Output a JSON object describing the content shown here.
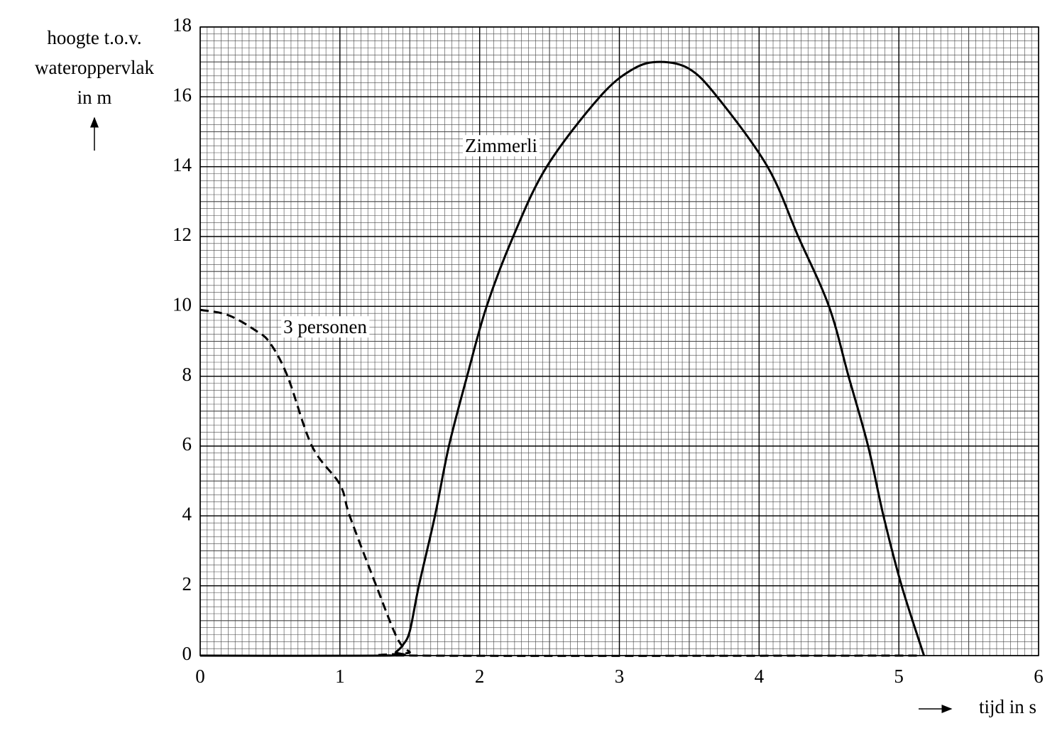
{
  "chart_data": {
    "type": "line",
    "ylabel": [
      "hoogte t.o.v.",
      "wateroppervlak",
      "in m"
    ],
    "xlabel": "tijd in s",
    "x_series": true,
    "series": [
      {
        "name": "Zimmerli",
        "color": "#000000",
        "dashed": false,
        "x": [
          0,
          1.35,
          1.4,
          1.45,
          1.5,
          1.565,
          1.68,
          1.78,
          1.91,
          2.05,
          2.24,
          2.48,
          2.86,
          3.1,
          3.29,
          3.5,
          3.7,
          4.06,
          4.28,
          4.5,
          4.64,
          4.78,
          4.89,
          5.02,
          5.18
        ],
        "values": [
          0,
          0,
          0.1,
          0.3,
          0.7,
          2,
          4,
          6,
          8,
          10,
          12,
          14,
          16,
          16.8,
          17,
          16.8,
          16,
          14,
          12,
          10,
          8,
          6,
          4,
          2,
          0
        ]
      },
      {
        "name": "3 personen",
        "color": "#000000",
        "dashed": true,
        "x": [
          0,
          0.2,
          0.4,
          0.5,
          0.625,
          0.8,
          1.0,
          1.07,
          1.26,
          1.41,
          1.5,
          1.55,
          5.15
        ],
        "values": [
          9.9,
          9.75,
          9.3,
          8.95,
          8,
          6,
          4.9,
          4,
          2,
          0.5,
          0.1,
          0,
          0
        ]
      }
    ],
    "xlim": [
      0,
      6
    ],
    "xticks": [
      0,
      1,
      2,
      3,
      4,
      5,
      6
    ],
    "ylim": [
      0,
      18
    ],
    "yticks": [
      0,
      2,
      4,
      6,
      8,
      10,
      12,
      14,
      16,
      18
    ],
    "grid": {
      "minor_x": 0.05,
      "minor_y": 0.2
    }
  }
}
